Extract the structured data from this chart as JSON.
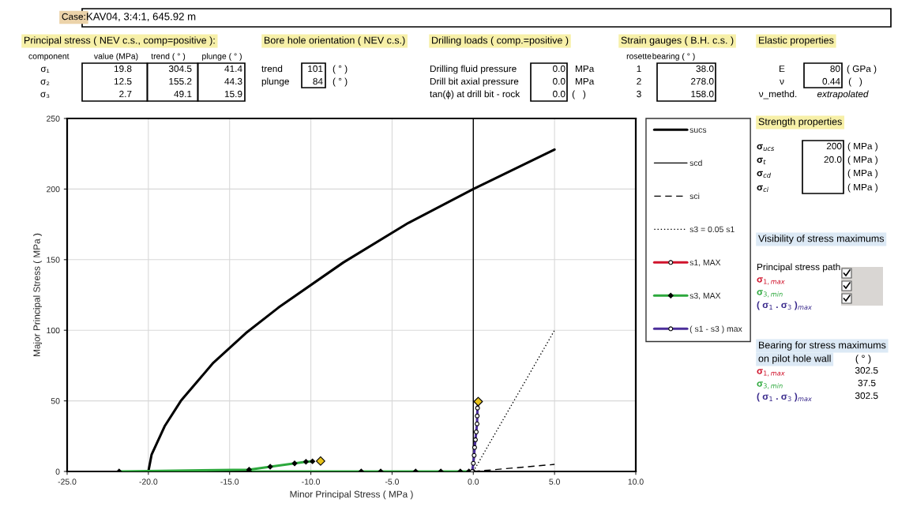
{
  "chart_data": {
    "type": "line",
    "xlabel": "Minor Principal Stress ( MPa )",
    "ylabel": "Major Principal Stress ( MPa )",
    "xlim": [
      -25,
      10
    ],
    "xticks": [
      {
        "value": -25,
        "label": "-25.0"
      },
      {
        "value": -20,
        "label": "-20.0"
      },
      {
        "value": -15,
        "label": "-15.0"
      },
      {
        "value": -10,
        "label": "-10.0"
      },
      {
        "value": -5,
        "label": "-5.0"
      },
      {
        "value": 0,
        "label": "0.0"
      },
      {
        "value": 5,
        "label": "5.0"
      },
      {
        "value": 10,
        "label": "10.0"
      }
    ],
    "ylim": [
      0,
      250
    ],
    "yticks": [
      0,
      50,
      100,
      150,
      200,
      250
    ],
    "grid": true,
    "legend": "right",
    "ref_lines": [
      {
        "axis": "x",
        "value": 0,
        "color": "#000000"
      }
    ],
    "series": [
      {
        "name": "sucs",
        "color": "#000000",
        "line_style": "solid",
        "x": [
          -20,
          -19.8,
          -19,
          -18,
          -16,
          -14,
          -12,
          -8,
          -4,
          0,
          5
        ],
        "values": [
          0,
          12,
          32,
          50,
          77,
          98,
          116,
          148,
          176,
          200,
          228
        ]
      },
      {
        "name": "scd",
        "color": "#000000",
        "line_style": "solid"
      },
      {
        "name": "sci",
        "color": "#000000",
        "line_style": "dashed",
        "x": [
          0,
          5
        ],
        "values": [
          0,
          5
        ]
      },
      {
        "name": "s3 = 0.05 s1",
        "color": "#000000",
        "line_style": "dotted",
        "x": [
          0,
          5
        ],
        "values": [
          0,
          100
        ]
      },
      {
        "name": "s1, MAX",
        "color": "#d0142c",
        "line_style": "solid",
        "marker": "circle"
      },
      {
        "name": "s3, MAX",
        "color": "#2ca83c",
        "line_style": "solid",
        "marker": "diamond",
        "x": [
          -21.8,
          -13.8,
          -12.5,
          -11.0,
          -10.3,
          -9.9
        ],
        "values": [
          0,
          1.3,
          3.4,
          5.7,
          6.9,
          7.2
        ]
      },
      {
        "color": "#2ca83c",
        "line_style": "solid",
        "marker": "diamond",
        "x": [
          -13.8,
          -6.9,
          -5.7,
          -3.55,
          -2.0,
          -0.8,
          -0.27,
          0
        ],
        "values": [
          0,
          0,
          0,
          0,
          0,
          0,
          0,
          0
        ]
      },
      {
        "name": "( s1 - s3 ) max",
        "color": "#4b2e9a",
        "line_style": "solid",
        "marker": "circle",
        "x": [
          -0.07,
          0.0,
          0.05,
          0.08,
          0.13,
          0.18,
          0.23,
          0.24,
          0.26,
          0.3
        ],
        "values": [
          0,
          5.8,
          11.4,
          17,
          22.5,
          28,
          33.7,
          39.3,
          44.9,
          49
        ]
      },
      {
        "type": "scatter",
        "color": "#e8c21a",
        "marker": "diamond",
        "x": [
          -9.4,
          0.3
        ],
        "values": [
          7.4,
          49.5
        ]
      }
    ],
    "annotations": [
      "Case:",
      "KAV04, 3:4:1, 645.92 m",
      "Principal stress ( NEV c.s., comp=positive ):",
      "Bore hole orientation ( NEV c.s.)",
      "Drilling loads ( comp.=positive )",
      "Strain gauges ( B.H. c.s. )",
      "Elastic properties",
      "Strength properties",
      "Visibility of stress maximums",
      "Bearing for stress maximums",
      "on pilot hole wall",
      "( ° )",
      "component",
      "value (MPa)",
      "trend ( ° )",
      "plunge ( ° )",
      "σ₁",
      "σ₂",
      "σ₃",
      "19.8",
      "304.5",
      "41.4",
      "12.5",
      "155.2",
      "44.3",
      "2.7",
      "49.1",
      "15.9",
      "trend",
      "plunge",
      "101",
      "84",
      "( ° )",
      "( ° )",
      "Drilling fluid pressure",
      "Drill bit axial pressure",
      "tan(ϕ) at drill bit - rock",
      "0.0",
      "0.0",
      "0.0",
      "MPa",
      "MPa",
      "(   )",
      "rosette",
      "bearing ( ° )",
      "1",
      "2",
      "3",
      "38.0",
      "278.0",
      "158.0",
      "E",
      "ν",
      "ν_methd.",
      "80",
      "0.44",
      "( GPa )",
      "(   )",
      "extrapolated",
      "σ$_{ucs}$",
      "σ$_{t}$",
      "σ$_{cd}$",
      "σ$_{ci}$",
      "200",
      "20.0",
      "( MPa )",
      "( MPa )",
      "( MPa )",
      "( MPa )",
      "Principal stress path",
      "σ$_{1,max}$",
      "σ$_{3,min}$",
      "( σ$_{1}$ . σ$_{3}$ )$_{max}$",
      "σ$_{1,max}$",
      "σ$_{3,min}$",
      "( σ$_{1}$ . σ$_{3}$ )$_{max}$",
      "302.5",
      "37.5",
      "302.5"
    ]
  }
}
